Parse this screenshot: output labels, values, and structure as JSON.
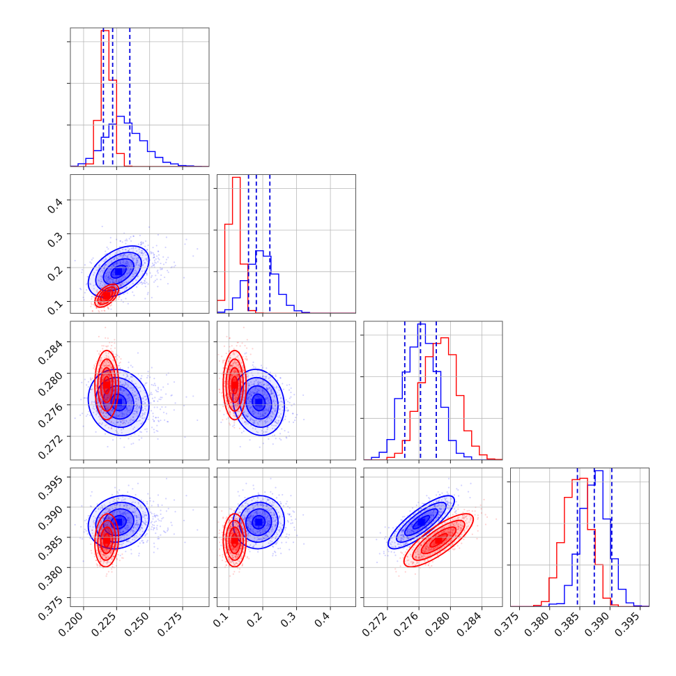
{
  "chart_data": {
    "type": "corner",
    "colors": {
      "blue": "#0000ff",
      "red": "#ff0000",
      "quantile": "#0000dd"
    },
    "grid": true,
    "parameters": [
      {
        "range": [
          0.19,
          0.295
        ],
        "ticks": [
          0.2,
          0.225,
          0.25,
          0.275
        ],
        "tick_labels": [
          "0.200",
          "0.225",
          "0.250",
          "0.275"
        ]
      },
      {
        "range": [
          0.065,
          0.475
        ],
        "ticks": [
          0.1,
          0.2,
          0.3,
          0.4
        ],
        "tick_labels": [
          "0.1",
          "0.2",
          "0.3",
          "0.4"
        ]
      },
      {
        "range": [
          0.269,
          0.2866
        ],
        "ticks": [
          0.272,
          0.276,
          0.28,
          0.284
        ],
        "tick_labels": [
          "0.272",
          "0.276",
          "0.280",
          "0.284"
        ]
      },
      {
        "range": [
          0.3735,
          0.3965
        ],
        "ticks": [
          0.375,
          0.38,
          0.385,
          0.39,
          0.395
        ],
        "tick_labels": [
          "0.375",
          "0.380",
          "0.385",
          "0.390",
          "0.395"
        ]
      }
    ],
    "series": [
      {
        "color": "blue",
        "mean": [
          0.2265,
          0.188,
          0.2763,
          0.3875
        ],
        "sd": [
          0.0115,
          0.038,
          0.0021,
          0.0022
        ],
        "skew": [
          0.016,
          0.03,
          0,
          0
        ],
        "quantiles": [
          [
            0.215,
            0.222,
            0.235
          ],
          [
            0.158,
            0.181,
            0.221
          ],
          [
            0.2742,
            0.2762,
            0.2782
          ],
          [
            0.3846,
            0.3874,
            0.3903
          ]
        ],
        "correlations": [
          [
            0,
            1,
            0.45
          ],
          [
            0,
            2,
            -0.1
          ],
          [
            0,
            3,
            0.15
          ],
          [
            1,
            2,
            -0.12
          ],
          [
            1,
            3,
            0.05
          ],
          [
            2,
            3,
            0.82
          ]
        ]
      },
      {
        "color": "red",
        "mean": [
          0.2175,
          0.117,
          0.2785,
          0.3845
        ],
        "sd": [
          0.0045,
          0.017,
          0.0022,
          0.0022
        ],
        "skew": [
          0,
          0,
          0,
          0
        ],
        "quantiles": [],
        "correlations": [
          [
            0,
            1,
            0.55
          ],
          [
            0,
            2,
            0.0
          ],
          [
            0,
            3,
            0.1
          ],
          [
            1,
            2,
            0.0
          ],
          [
            1,
            3,
            0.0
          ],
          [
            2,
            3,
            0.8
          ]
        ]
      }
    ],
    "histogram_bins": 18,
    "contour_levels_sigma": [
      0.5,
      1.0,
      1.5,
      2.0
    ]
  }
}
